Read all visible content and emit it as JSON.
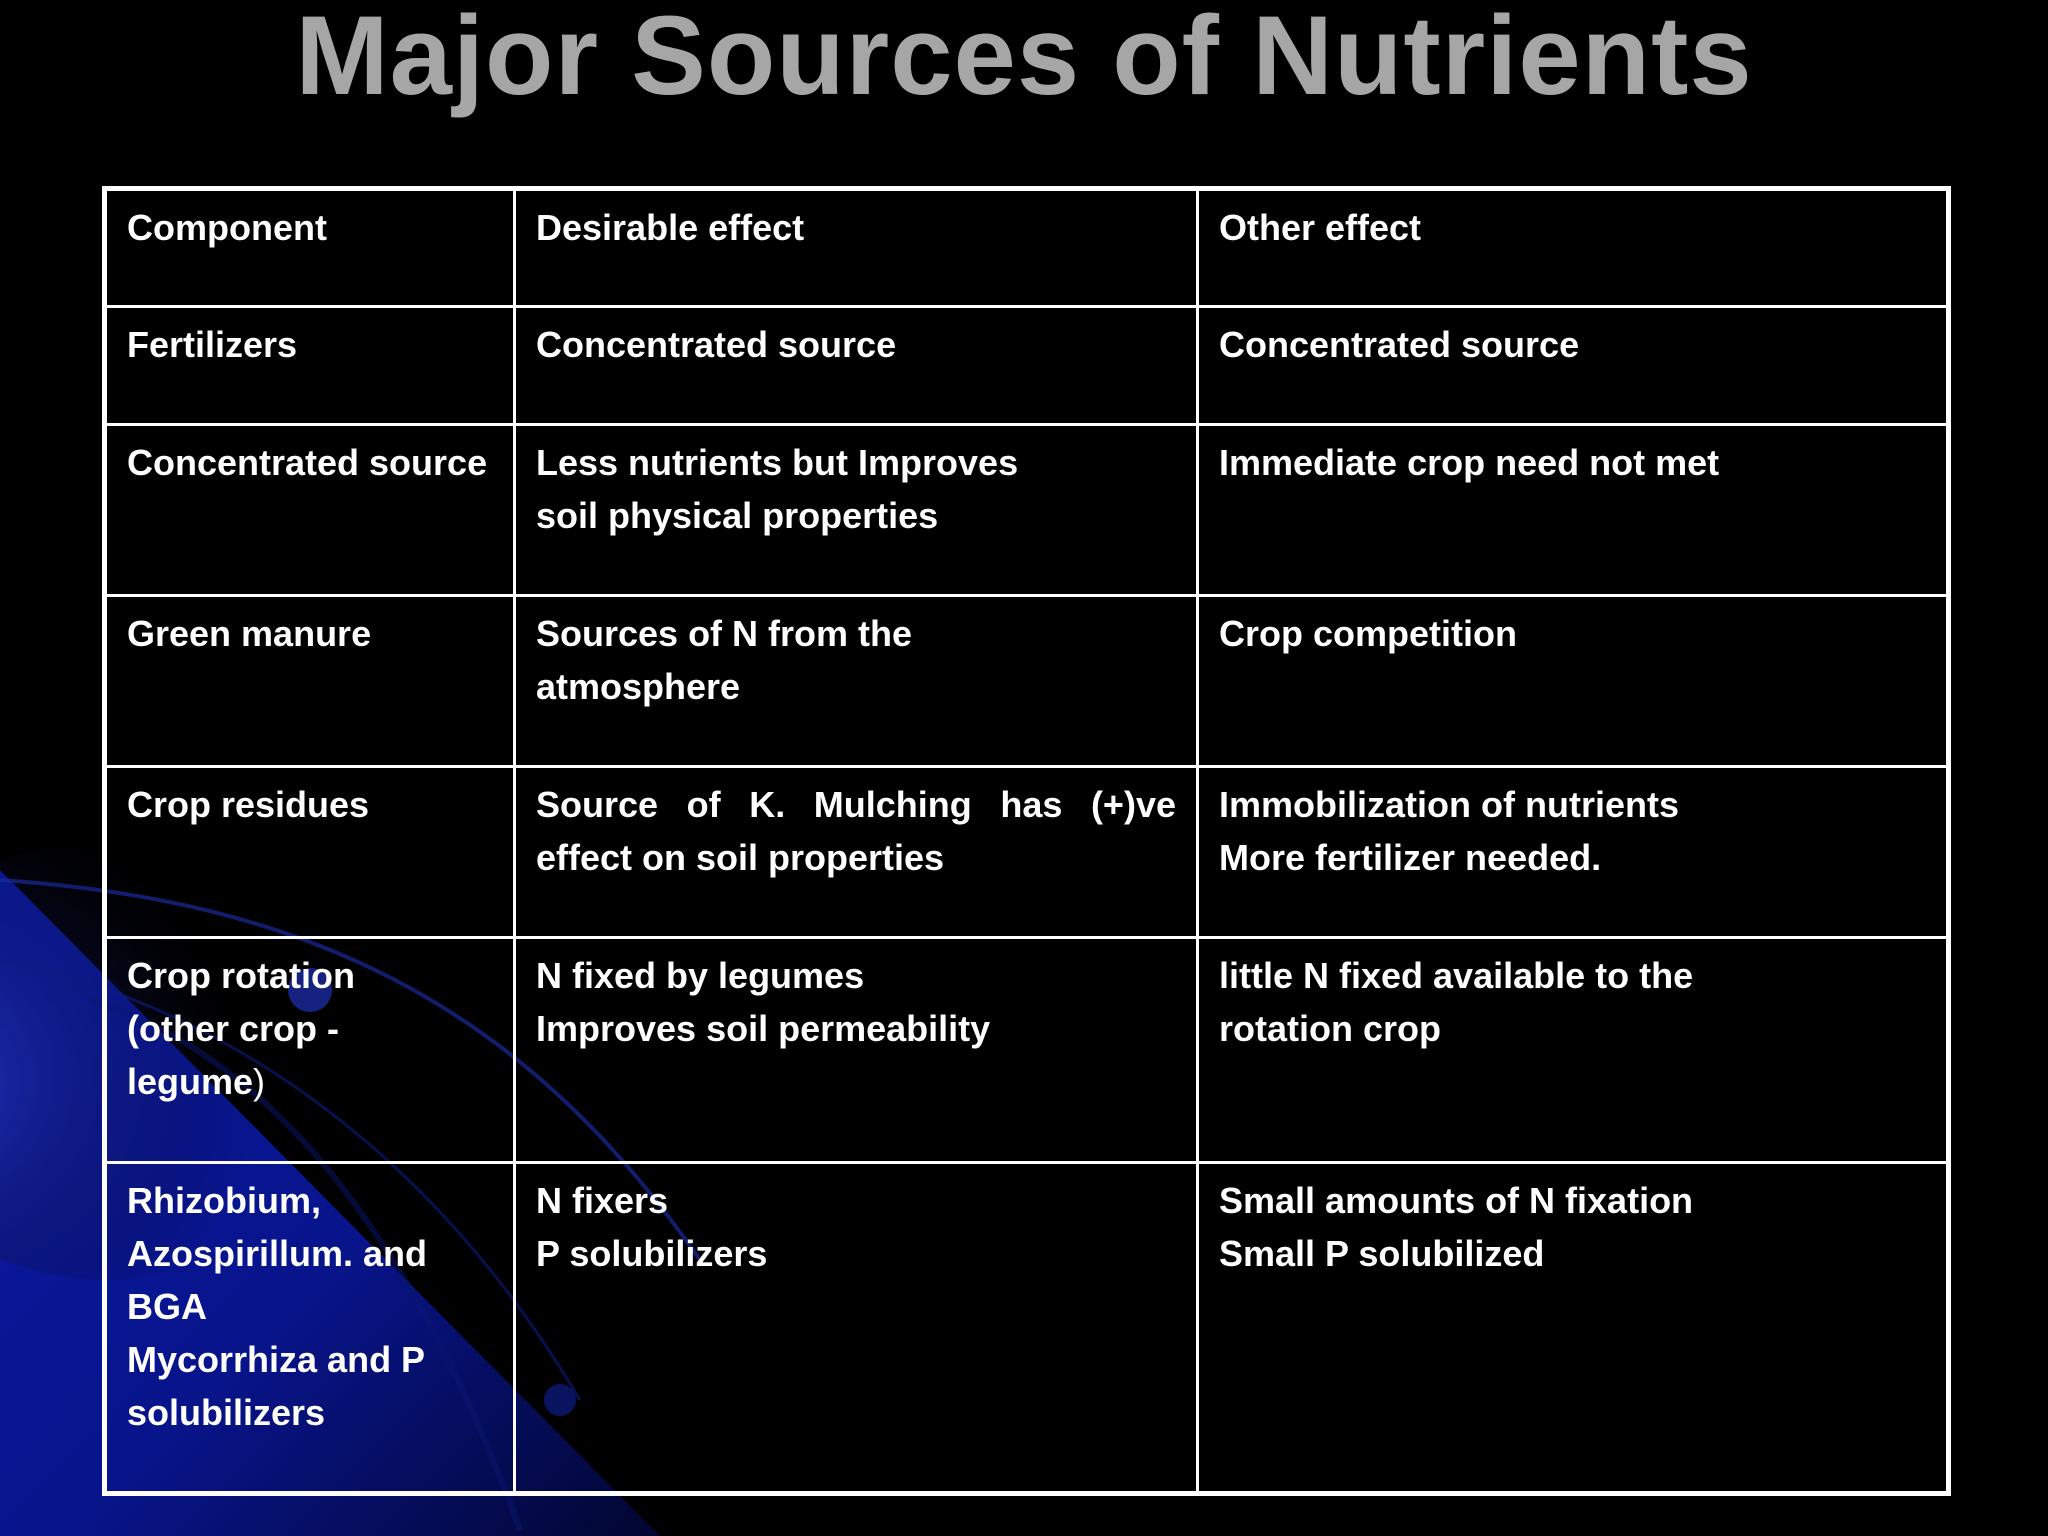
{
  "slide": {
    "title": "Major Sources of Nutrients"
  },
  "table": {
    "headers": [
      "Component",
      "Desirable effect",
      "Other effect"
    ],
    "rows": [
      {
        "component": [
          "Fertilizers"
        ],
        "desirable": [
          "Concentrated source"
        ],
        "other": [
          "Concentrated source"
        ]
      },
      {
        "component": [
          "Concentrated source"
        ],
        "desirable": [
          "Less nutrients but Improves",
          "soil physical properties"
        ],
        "other": [
          "Immediate crop need not met"
        ]
      },
      {
        "component": [
          "Green manure"
        ],
        "desirable": [
          "Sources of N from the",
          "atmosphere"
        ],
        "other": [
          "Crop competition"
        ]
      },
      {
        "component": [
          "Crop residues"
        ],
        "desirable": [
          "Source of K. Mulching has (+)ve",
          "effect on soil properties"
        ],
        "other": [
          "Immobilization of nutrients",
          "More fertilizer needed."
        ]
      },
      {
        "component": [
          "Crop rotation",
          "(other crop -",
          "legume",
          ")"
        ],
        "desirable": [
          "N fixed by legumes",
          "Improves soil permeability"
        ],
        "other": [
          "little N fixed available to the",
          "rotation crop"
        ]
      },
      {
        "component": [
          "Rhizobium,",
          "Azospirillum. and",
          "BGA",
          "Mycorrhiza and P",
          "solubilizers"
        ],
        "desirable": [
          "N fixers",
          "P solubilizers"
        ],
        "other": [
          "Small amounts of N fixation",
          "Small P solubilized"
        ]
      }
    ]
  },
  "theme": {
    "background": "#000000",
    "title_color": "#a6a6a6",
    "text_color": "#ffffff",
    "border_color": "#ffffff",
    "accent_blue": "#0a1aa8"
  }
}
